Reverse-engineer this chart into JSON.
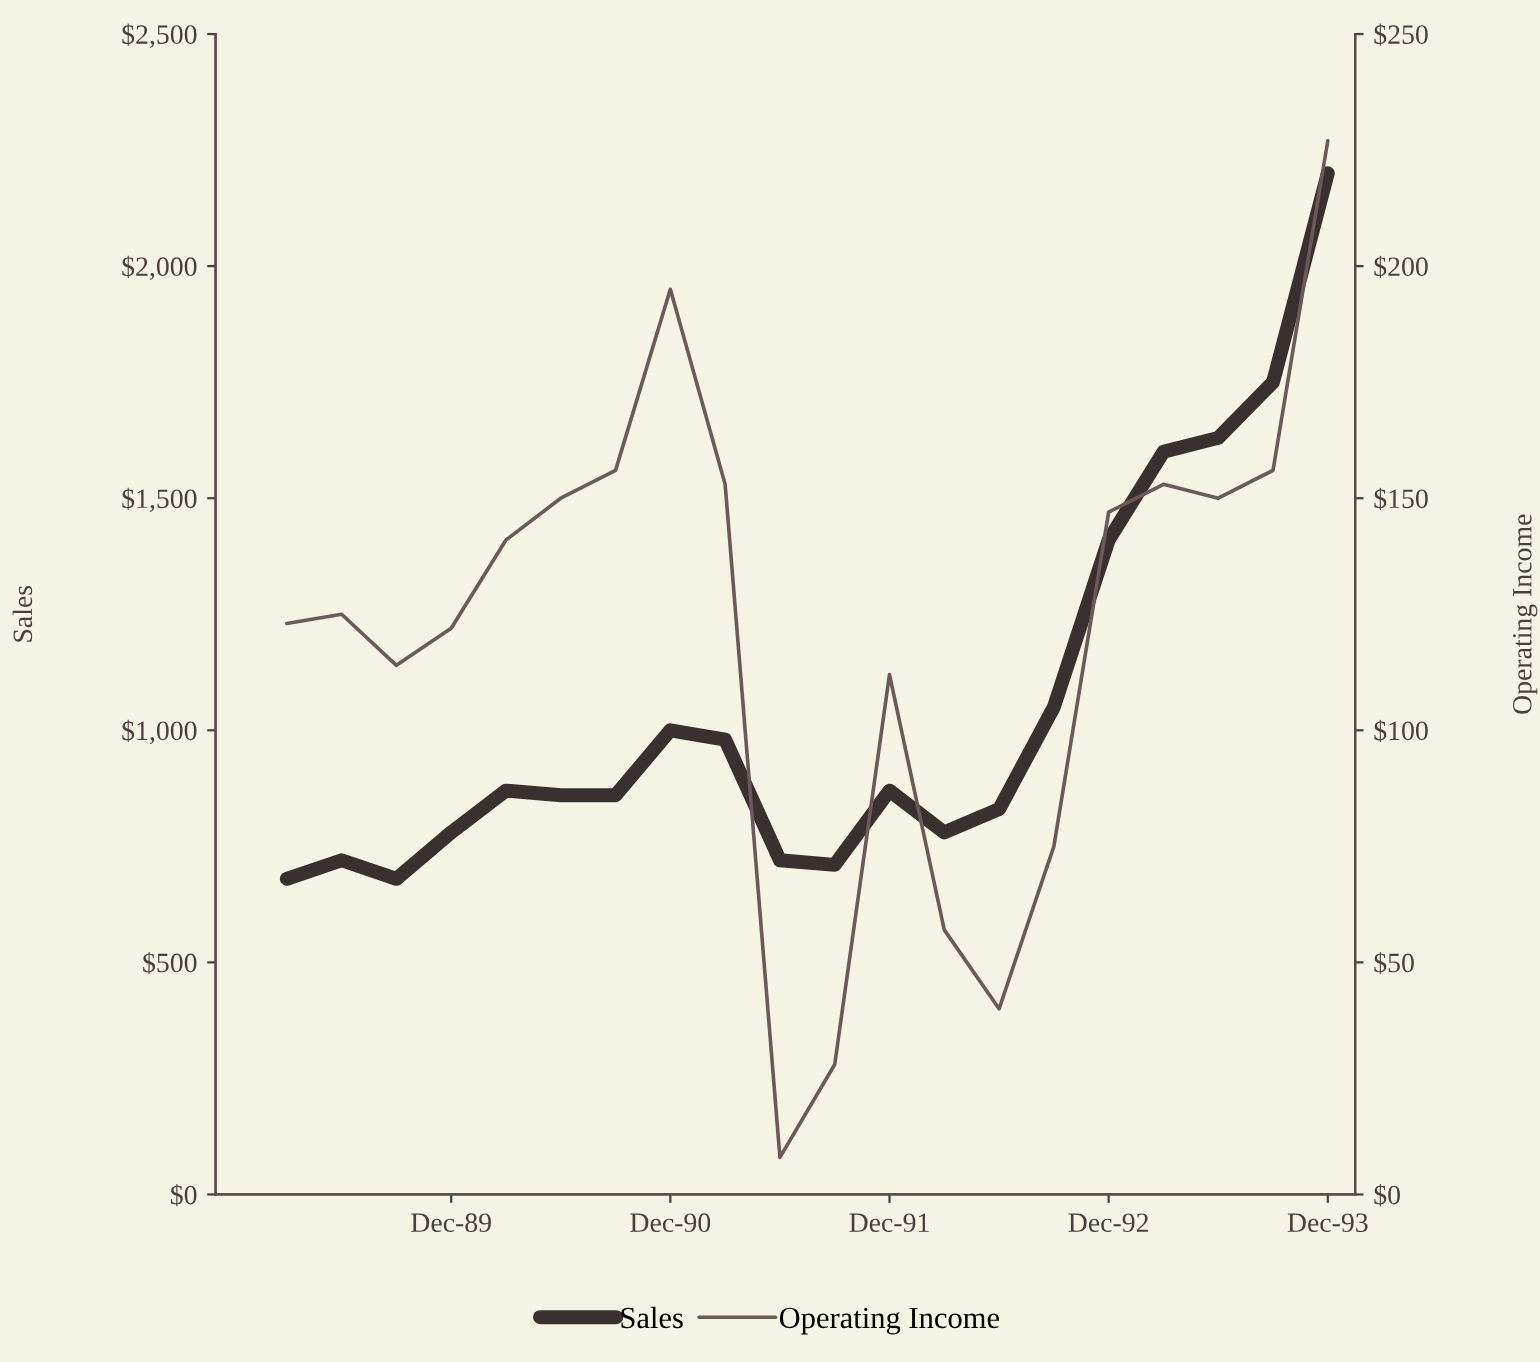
{
  "chart_data": {
    "type": "line",
    "categories": [
      null,
      null,
      null,
      "Dec-89",
      null,
      null,
      null,
      "Dec-90",
      null,
      null,
      null,
      "Dec-91",
      null,
      null,
      null,
      "Dec-92",
      null,
      null,
      null,
      "Dec-93"
    ],
    "series": [
      {
        "name": "Sales",
        "color": "#3a3030",
        "values": [
          680,
          720,
          680,
          780,
          870,
          860,
          860,
          1000,
          980,
          720,
          710,
          870,
          780,
          830,
          1050,
          1410,
          1600,
          1630,
          1750,
          2200
        ]
      },
      {
        "name": "Operating Income",
        "color": "#6a5a5a",
        "axis": "y2",
        "values": [
          123,
          125,
          114,
          122,
          141,
          150,
          156,
          195,
          153,
          8,
          28,
          112,
          57,
          40,
          75,
          147,
          153,
          150,
          156,
          227
        ]
      }
    ],
    "ylabel": "Sales",
    "y2label": "Operating Income",
    "ylim": [
      0,
      2500
    ],
    "yticks": [
      {
        "value": 0,
        "label": "$0"
      },
      {
        "value": 500,
        "label": "$500"
      },
      {
        "value": 1000,
        "label": "$1,000"
      },
      {
        "value": 1500,
        "label": "$1,500"
      },
      {
        "value": 2000,
        "label": "$2,000"
      },
      {
        "value": 2500,
        "label": "$2,500"
      }
    ],
    "y2lim": [
      0,
      250
    ],
    "y2ticks": [
      {
        "value": 0,
        "label": "$0"
      },
      {
        "value": 50,
        "label": "$50"
      },
      {
        "value": 100,
        "label": "$100"
      },
      {
        "value": 150,
        "label": "$150"
      },
      {
        "value": 200,
        "label": "$200"
      },
      {
        "value": 250,
        "label": "$250"
      }
    ],
    "legend": "bottom",
    "grid": false
  }
}
